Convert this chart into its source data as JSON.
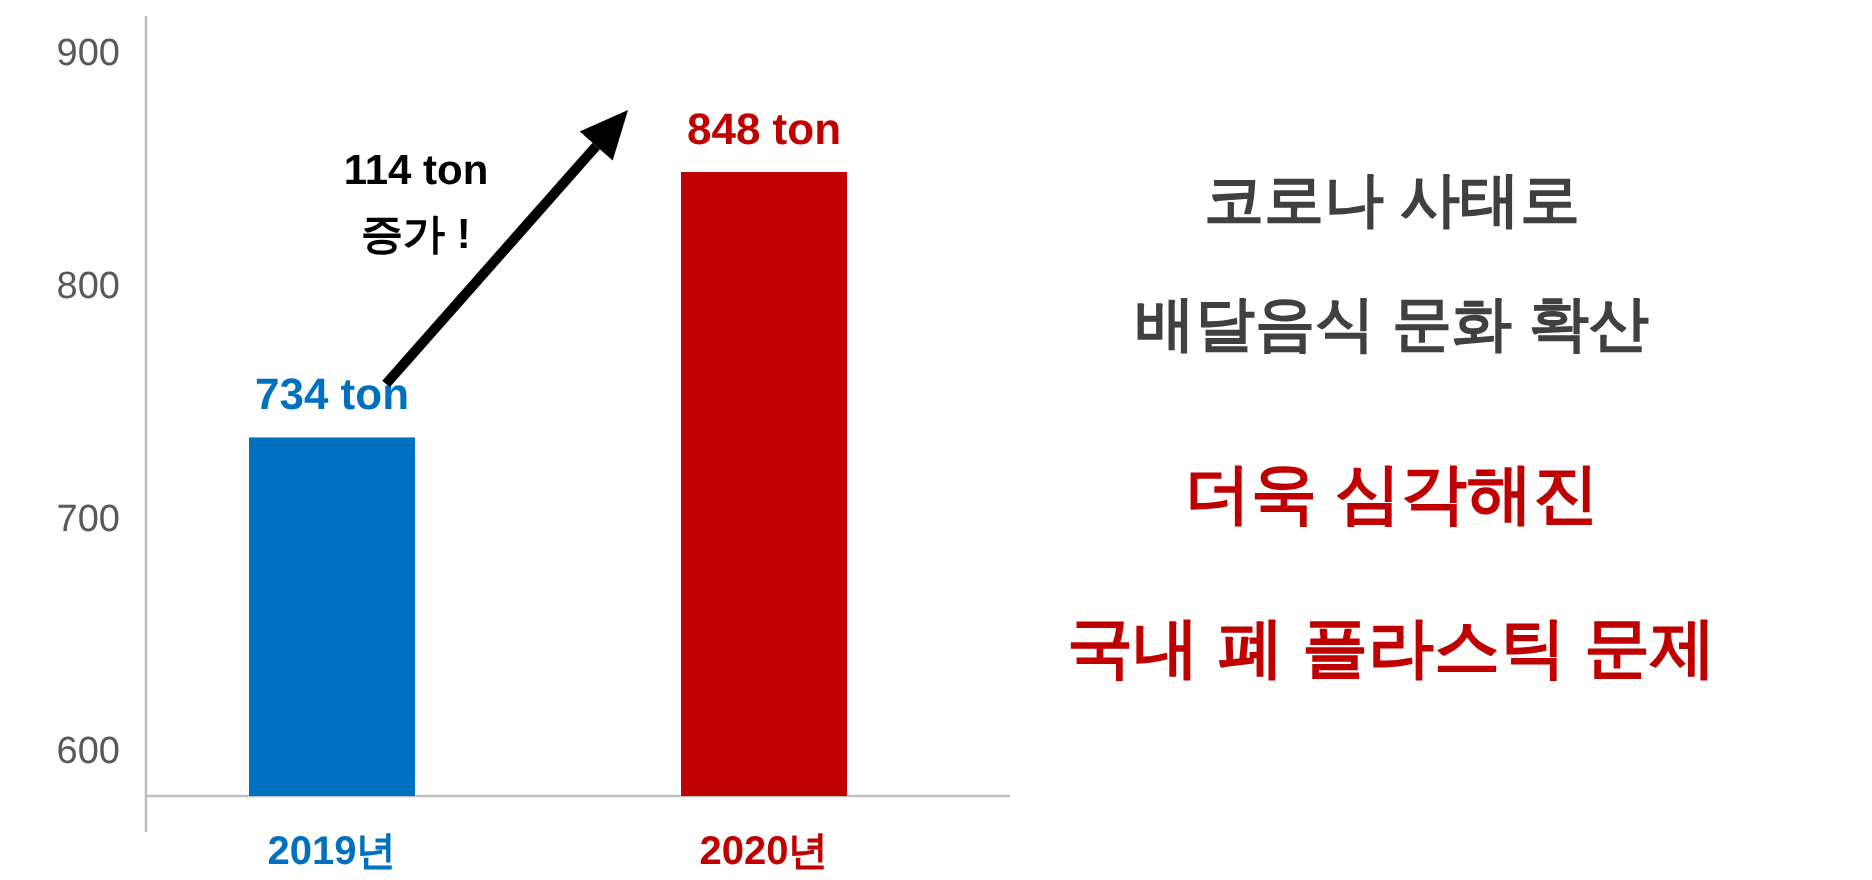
{
  "chart_data": {
    "type": "bar",
    "categories": [
      "2019년",
      "2020년"
    ],
    "values": [
      734,
      848
    ],
    "colors": [
      "#0070c0",
      "#c00000"
    ],
    "value_labels": [
      "734 ton",
      "848 ton"
    ],
    "ylim": [
      580,
      915
    ],
    "yticks": [
      600,
      700,
      800,
      900
    ],
    "grid": false,
    "annotations": [
      "114 ton\n증가 !",
      "코로나 사태로",
      "배달음식 문화 확산",
      "더욱 심각해진",
      "국내 폐 플라스틱 문제"
    ]
  }
}
